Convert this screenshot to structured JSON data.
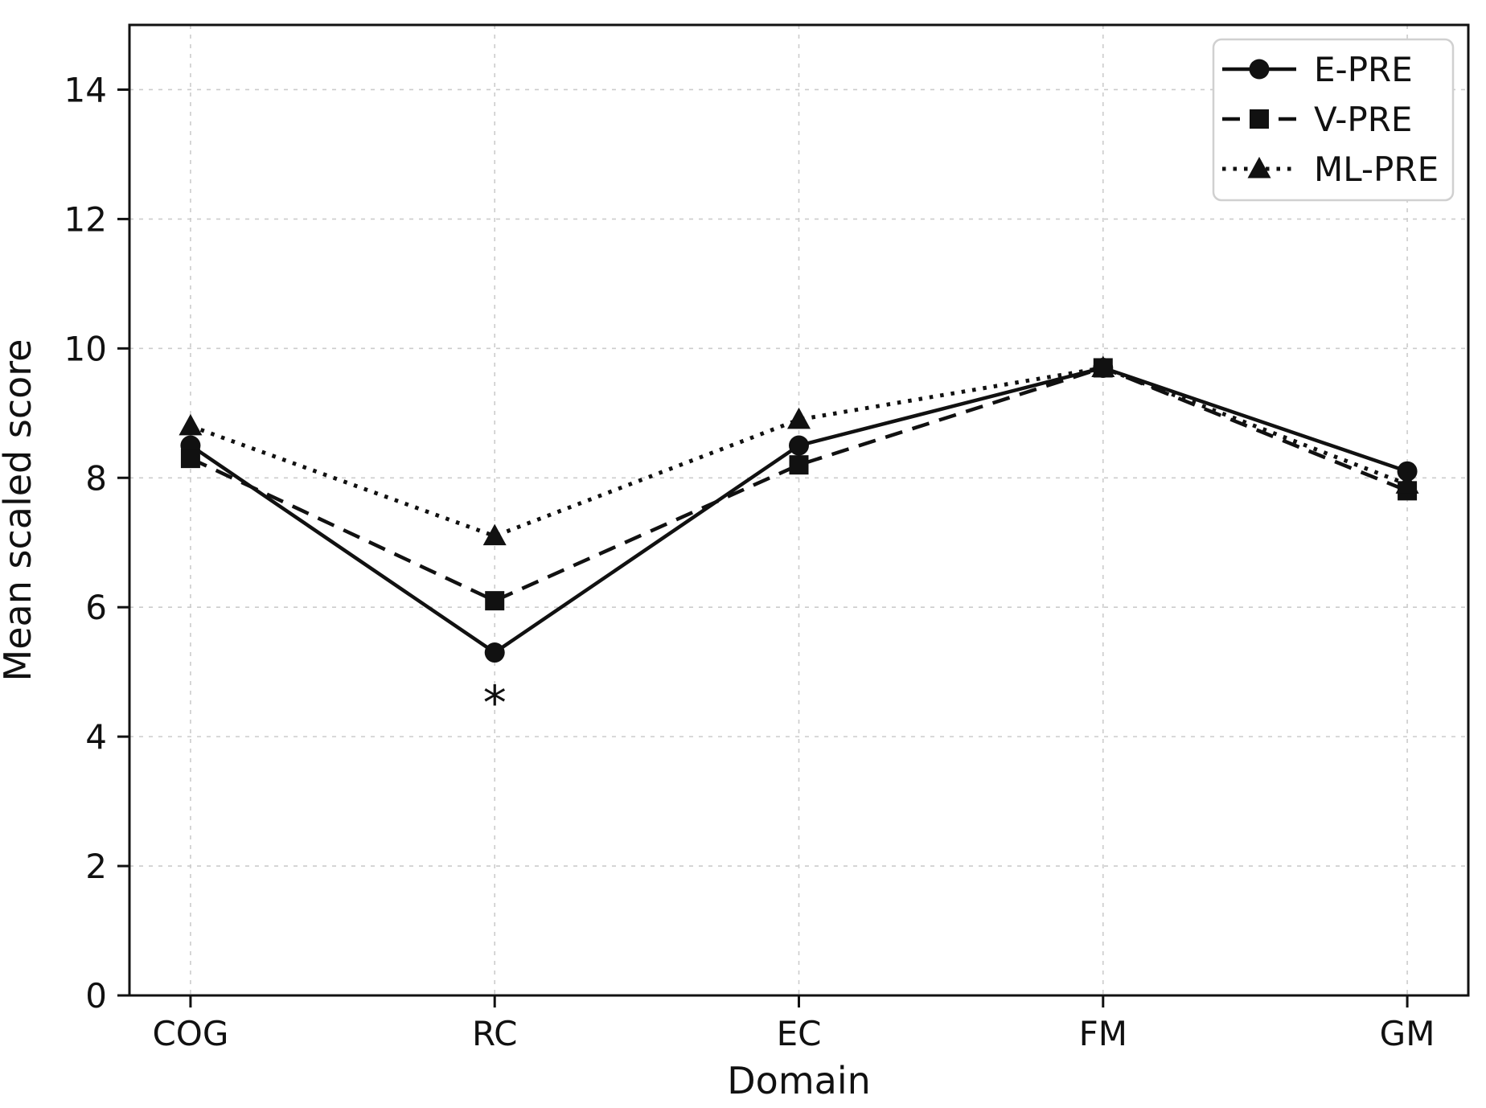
{
  "figure": {
    "background": "#ffffff",
    "ink_color": "#111111",
    "gridline_color": "#cccccc",
    "legend_border_color": "#d0d0d0"
  },
  "chart_data": {
    "type": "line",
    "xlabel": "Domain",
    "ylabel": "Mean scaled score",
    "categories": [
      "COG",
      "RC",
      "EC",
      "FM",
      "GM"
    ],
    "series": [
      {
        "name": "E-PRE",
        "marker": "circle",
        "line": "solid",
        "values": [
          8.5,
          5.3,
          8.5,
          9.7,
          8.1
        ]
      },
      {
        "name": "V-PRE",
        "marker": "square",
        "line": "dashed",
        "values": [
          8.3,
          6.1,
          8.2,
          9.7,
          7.8
        ]
      },
      {
        "name": "ML-PRE",
        "marker": "triangle",
        "line": "dotted",
        "values": [
          8.8,
          7.1,
          8.9,
          9.7,
          7.9
        ]
      }
    ],
    "ylim": [
      0,
      15
    ],
    "yticks": [
      0,
      2,
      4,
      6,
      8,
      10,
      12,
      14
    ],
    "grid": true,
    "legend_position": "upper right",
    "annotations": [
      {
        "text": "*",
        "category": "RC",
        "value": 4.7
      }
    ]
  }
}
